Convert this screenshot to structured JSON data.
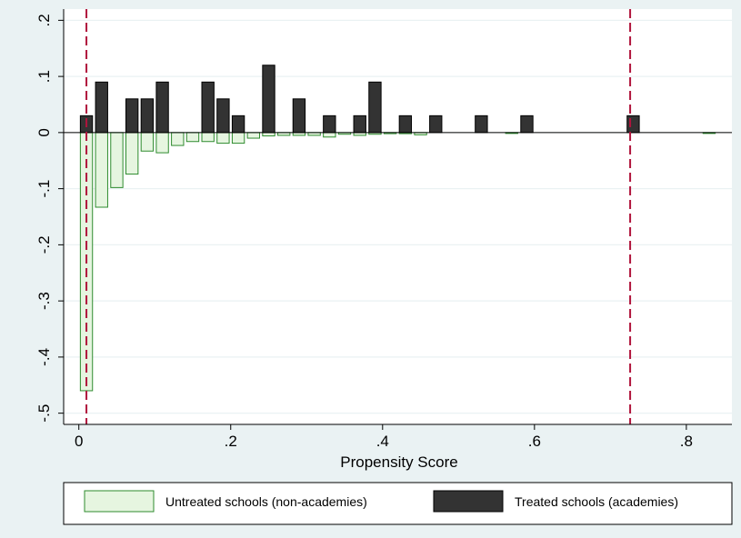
{
  "chart_data": {
    "type": "bar",
    "title": "",
    "xlabel": "Propensity Score",
    "ylabel": "",
    "xlim": [
      -0.02,
      0.86
    ],
    "ylim": [
      -0.52,
      0.22
    ],
    "x_ticks": [
      {
        "value": 0,
        "label": "0"
      },
      {
        "value": 0.2,
        "label": ".2"
      },
      {
        "value": 0.4,
        "label": ".4"
      },
      {
        "value": 0.6,
        "label": ".6"
      },
      {
        "value": 0.8,
        "label": ".8"
      }
    ],
    "y_ticks": [
      {
        "value": 0.2,
        "label": ".2"
      },
      {
        "value": 0.1,
        "label": ".1"
      },
      {
        "value": 0,
        "label": "0"
      },
      {
        "value": -0.1,
        "label": "-.1"
      },
      {
        "value": -0.2,
        "label": "-.2"
      },
      {
        "value": -0.3,
        "label": "-.3"
      },
      {
        "value": -0.4,
        "label": "-.4"
      },
      {
        "value": -0.5,
        "label": "-.5"
      }
    ],
    "grid": true,
    "bar_width": 0.016,
    "legend_position": "bottom",
    "reference_lines": [
      0.01,
      0.726
    ],
    "series": [
      {
        "name": "Untreated schools (non-academies)",
        "color": "#e6f5e0",
        "edge": "#2e8b2e",
        "x": [
          0.01,
          0.03,
          0.05,
          0.07,
          0.09,
          0.11,
          0.13,
          0.15,
          0.17,
          0.19,
          0.21,
          0.23,
          0.25,
          0.27,
          0.29,
          0.31,
          0.33,
          0.35,
          0.37,
          0.39,
          0.41,
          0.43,
          0.45,
          0.57,
          0.83
        ],
        "values": [
          -0.46,
          -0.133,
          -0.098,
          -0.074,
          -0.033,
          -0.036,
          -0.023,
          -0.016,
          -0.016,
          -0.019,
          -0.019,
          -0.01,
          -0.006,
          -0.005,
          -0.005,
          -0.005,
          -0.008,
          -0.003,
          -0.005,
          -0.003,
          -0.002,
          -0.002,
          -0.004,
          -0.001,
          -0.001
        ]
      },
      {
        "name": "Treated schools (academies)",
        "color": "#333333",
        "edge": "#000000",
        "x": [
          0.01,
          0.03,
          0.07,
          0.09,
          0.11,
          0.17,
          0.19,
          0.21,
          0.25,
          0.29,
          0.33,
          0.37,
          0.39,
          0.43,
          0.47,
          0.53,
          0.59,
          0.73
        ],
        "values": [
          0.03,
          0.09,
          0.06,
          0.06,
          0.09,
          0.09,
          0.06,
          0.03,
          0.12,
          0.06,
          0.03,
          0.03,
          0.09,
          0.03,
          0.03,
          0.03,
          0.03,
          0.03
        ]
      }
    ]
  }
}
